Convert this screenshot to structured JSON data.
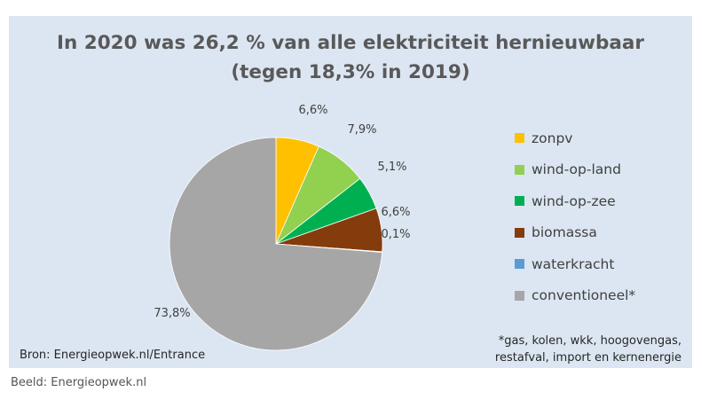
{
  "chart_data": {
    "type": "pie",
    "title": "In 2020 was 26,2 % van alle elektriciteit hernieuwbaar",
    "subtitle": "(tegen 18,3% in 2019)",
    "slices": [
      {
        "label": "zonpv",
        "value": 6.6,
        "display": "6,6%",
        "color": "#ffc000"
      },
      {
        "label": "wind-op-land",
        "value": 7.9,
        "display": "7,9%",
        "color": "#92d050"
      },
      {
        "label": "wind-op-zee",
        "value": 5.1,
        "display": "5,1%",
        "color": "#00b050"
      },
      {
        "label": "biomassa",
        "value": 6.6,
        "display": "6,6%",
        "color": "#843c0c"
      },
      {
        "label": "waterkracht",
        "value": 0.1,
        "display": "0,1%",
        "color": "#5b9bd5"
      },
      {
        "label": "conventioneel*",
        "value": 73.8,
        "display": "73,8%",
        "color": "#a6a6a6"
      }
    ],
    "legend_placement": "right"
  },
  "source": "Bron: Energieopwek.nl/Entrance",
  "footnote": {
    "line1": "*gas, kolen, wkk, hoogovengas,",
    "line2": "restafval, import en kernenergie"
  },
  "caption": "Beeld: Energieopwek.nl"
}
